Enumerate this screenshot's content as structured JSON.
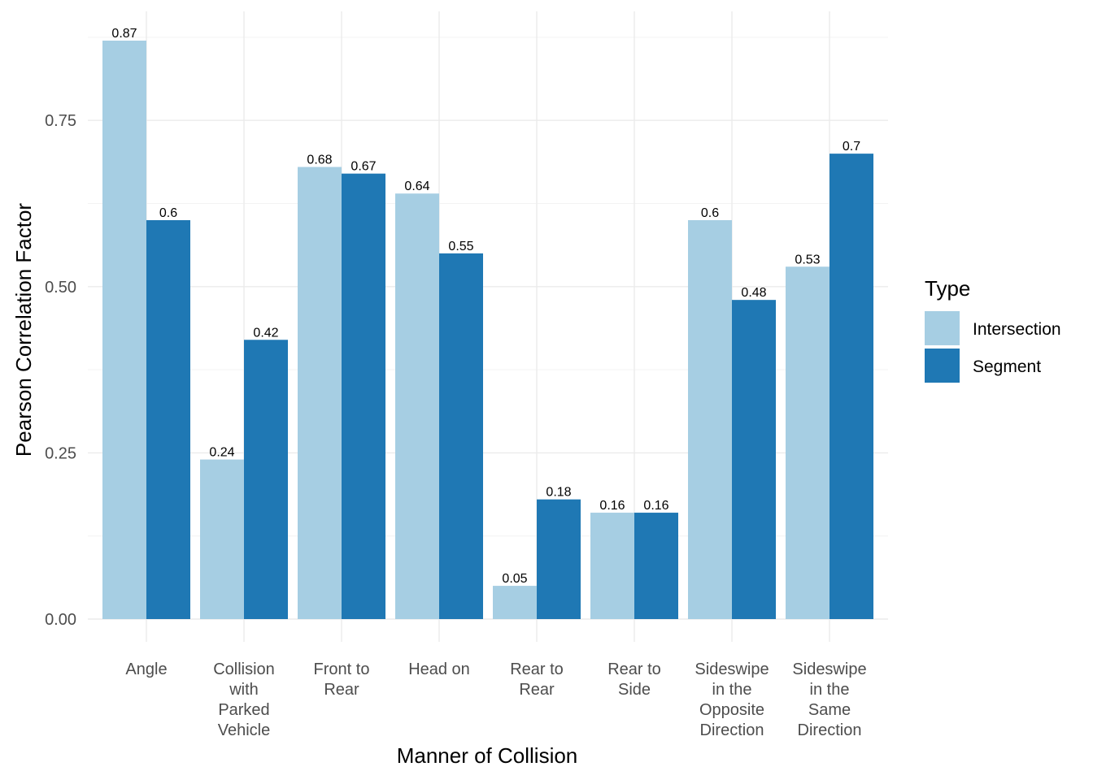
{
  "chart_data": {
    "type": "bar",
    "xlabel": "Manner of Collision",
    "ylabel": "Pearson Correlation Factor",
    "ylim": [
      0,
      0.87
    ],
    "yticks": [
      "0.00",
      "0.25",
      "0.50",
      "0.75"
    ],
    "ytick_values": [
      0,
      0.25,
      0.5,
      0.75
    ],
    "grid": true,
    "legend": {
      "title": "Type",
      "position": "right"
    },
    "categories": [
      [
        "Angle"
      ],
      [
        "Collision",
        "with",
        "Parked",
        "Vehicle"
      ],
      [
        "Front to",
        "Rear"
      ],
      [
        "Head on"
      ],
      [
        "Rear to",
        "Rear"
      ],
      [
        "Rear to",
        "Side"
      ],
      [
        "Sideswipe",
        "in the",
        "Opposite",
        "Direction"
      ],
      [
        "Sideswipe",
        "in the",
        "Same",
        "Direction"
      ]
    ],
    "series": [
      {
        "name": "Intersection",
        "color": "#a6cee3",
        "values": [
          0.87,
          0.24,
          0.68,
          0.64,
          0.05,
          0.16,
          0.6,
          0.53
        ],
        "labels": [
          "0.87",
          "0.24",
          "0.68",
          "0.64",
          "0.05",
          "0.16",
          "0.6",
          "0.53"
        ]
      },
      {
        "name": "Segment",
        "color": "#1f78b4",
        "values": [
          0.6,
          0.42,
          0.67,
          0.55,
          0.18,
          0.16,
          0.48,
          0.7
        ],
        "labels": [
          "0.6",
          "0.42",
          "0.67",
          "0.55",
          "0.18",
          "0.16",
          "0.48",
          "0.7"
        ]
      }
    ]
  }
}
